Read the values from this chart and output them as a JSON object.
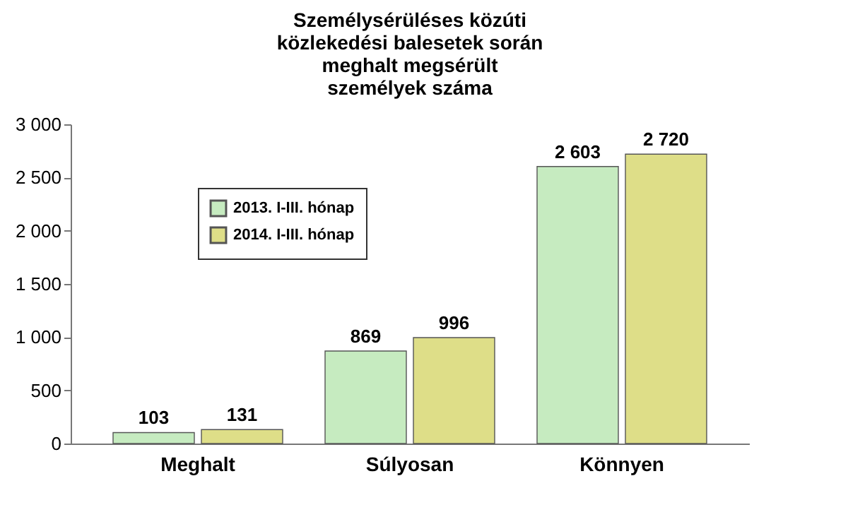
{
  "chart_data": {
    "type": "bar",
    "title": "Személysérüléses közúti\nközlekedési balesetek során\nmeghalt megsérült\nszemélyek száma",
    "categories": [
      "Meghalt",
      "Súlyosan",
      "Könnyen"
    ],
    "series": [
      {
        "name": "2013. I-III. hónap",
        "color": "#c6ebc0",
        "values": [
          103,
          869,
          2603
        ]
      },
      {
        "name": "2014. I-III. hónap",
        "color": "#dede88",
        "values": [
          131,
          996,
          2720
        ]
      }
    ],
    "ylim": [
      0,
      3000
    ],
    "yticks": [
      0,
      500,
      {
        "value": 1000,
        "label": "1 000"
      },
      {
        "value": 1500,
        "label": "1 500"
      },
      {
        "value": 2000,
        "label": "2 000"
      },
      {
        "value": 2500,
        "label": "2 500"
      },
      {
        "value": 3000,
        "label": "3 000"
      }
    ],
    "data_labels": true,
    "value_labels": [
      [
        "103",
        "869",
        "2 603"
      ],
      [
        "131",
        "996",
        "2 720"
      ]
    ],
    "legend": "top left",
    "grid": false
  }
}
